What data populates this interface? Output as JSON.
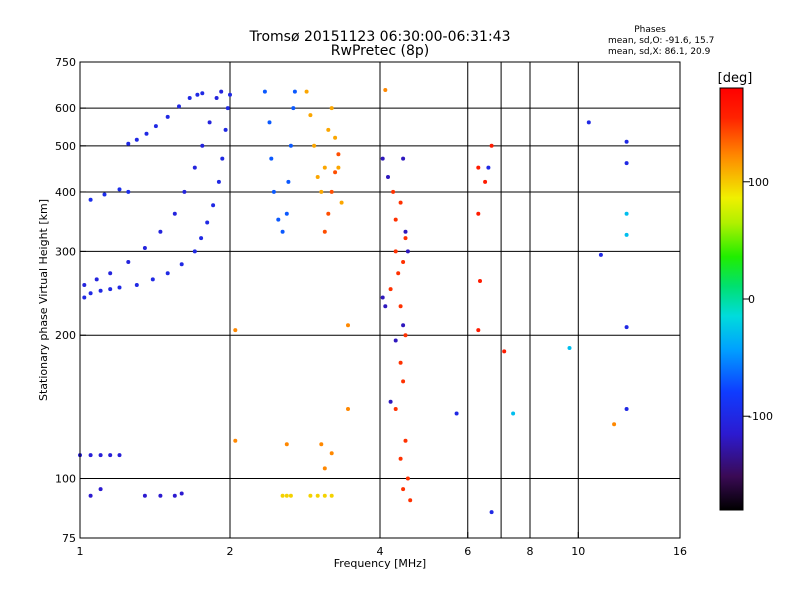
{
  "chart_data": {
    "type": "scatter",
    "title": "Tromsø 20151123 06:30:00-06:31:43",
    "subtitle": "RwPretec (8p)",
    "xlabel": "Frequency [MHz]",
    "ylabel": "Stationary phase Virtual Height [km]",
    "x_scale": "log",
    "y_scale": "log",
    "xlim": [
      1,
      16
    ],
    "ylim": [
      75,
      750
    ],
    "x_ticks": [
      1,
      2,
      4,
      6,
      8,
      10,
      16
    ],
    "x_tick_labels": [
      "1",
      "2",
      "4",
      "6",
      "8",
      "10",
      "16"
    ],
    "y_ticks": [
      75,
      100,
      200,
      300,
      400,
      500,
      600,
      750
    ],
    "y_tick_labels": [
      "75",
      "100",
      "200",
      "300",
      "400",
      "500",
      "600",
      "750"
    ],
    "x_gridlines": [
      2,
      4,
      6,
      7,
      8,
      10
    ],
    "y_gridlines": [
      100,
      200,
      300,
      400,
      500,
      600
    ],
    "stats": {
      "heading": "Phases",
      "line_o": "mean, sd,O: -91.6, 15.7",
      "line_x": "mean, sd,X:  86.1, 20.9"
    },
    "colorbar": {
      "label": "[deg]",
      "min": -180,
      "max": 180,
      "ticks": [
        100,
        0,
        -100
      ],
      "tick_labels": [
        "100",
        "0",
        "-100"
      ]
    },
    "traces": [
      {
        "name": "",
        "phase": -100,
        "points": [
          [
            1.02,
            240
          ],
          [
            1.05,
            245
          ],
          [
            1.1,
            248
          ],
          [
            1.15,
            250
          ],
          [
            1.2,
            252
          ],
          [
            1.3,
            255
          ],
          [
            1.4,
            262
          ],
          [
            1.5,
            270
          ],
          [
            1.6,
            282
          ],
          [
            1.7,
            300
          ],
          [
            1.75,
            320
          ],
          [
            1.8,
            345
          ],
          [
            1.85,
            375
          ],
          [
            1.9,
            420
          ],
          [
            1.93,
            470
          ],
          [
            1.96,
            540
          ],
          [
            1.98,
            600
          ],
          [
            2.0,
            640
          ]
        ]
      },
      {
        "name": "",
        "phase": -105,
        "points": [
          [
            1.02,
            255
          ],
          [
            1.08,
            262
          ],
          [
            1.15,
            270
          ],
          [
            1.25,
            285
          ],
          [
            1.35,
            305
          ],
          [
            1.45,
            330
          ],
          [
            1.55,
            360
          ],
          [
            1.62,
            400
          ],
          [
            1.7,
            450
          ],
          [
            1.76,
            500
          ],
          [
            1.82,
            560
          ],
          [
            1.88,
            630
          ],
          [
            1.92,
            650
          ]
        ]
      },
      {
        "name": "",
        "phase": -100,
        "points": [
          [
            1.25,
            505
          ],
          [
            1.3,
            515
          ],
          [
            1.36,
            530
          ],
          [
            1.42,
            550
          ],
          [
            1.5,
            575
          ],
          [
            1.58,
            605
          ],
          [
            1.66,
            630
          ],
          [
            1.72,
            640
          ],
          [
            1.76,
            645
          ]
        ]
      },
      {
        "name": "",
        "phase": -95,
        "points": [
          [
            1.05,
            385
          ],
          [
            1.12,
            395
          ],
          [
            1.2,
            405
          ],
          [
            1.25,
            400
          ]
        ]
      },
      {
        "name": "",
        "phase": -70,
        "points": [
          [
            2.35,
            650
          ],
          [
            2.4,
            560
          ],
          [
            2.42,
            470
          ],
          [
            2.45,
            400
          ],
          [
            2.5,
            350
          ],
          [
            2.55,
            330
          ],
          [
            2.6,
            360
          ],
          [
            2.62,
            420
          ],
          [
            2.65,
            500
          ],
          [
            2.68,
            600
          ],
          [
            2.7,
            650
          ]
        ]
      },
      {
        "name": "",
        "phase": 110,
        "points": [
          [
            2.85,
            650
          ],
          [
            2.9,
            580
          ],
          [
            2.95,
            500
          ],
          [
            3.0,
            430
          ],
          [
            3.05,
            400
          ],
          [
            3.1,
            450
          ],
          [
            3.15,
            540
          ],
          [
            3.2,
            600
          ],
          [
            3.25,
            520
          ],
          [
            3.3,
            450
          ],
          [
            3.35,
            380
          ]
        ]
      },
      {
        "name": "",
        "phase": 140,
        "points": [
          [
            3.1,
            330
          ],
          [
            3.15,
            360
          ],
          [
            3.2,
            400
          ],
          [
            3.25,
            440
          ],
          [
            3.3,
            480
          ]
        ]
      },
      {
        "name": "",
        "phase": -110,
        "points": [
          [
            1.0,
            112
          ],
          [
            1.05,
            112
          ],
          [
            1.1,
            112
          ],
          [
            1.15,
            112
          ],
          [
            1.2,
            112
          ]
        ]
      },
      {
        "name": "",
        "phase": -115,
        "points": [
          [
            1.05,
            92
          ],
          [
            1.1,
            95
          ],
          [
            1.35,
            92
          ],
          [
            1.45,
            92
          ],
          [
            1.55,
            92
          ],
          [
            1.6,
            93
          ]
        ]
      },
      {
        "name": "",
        "phase": 95,
        "points": [
          [
            2.55,
            92
          ],
          [
            2.6,
            92
          ],
          [
            2.65,
            92
          ],
          [
            2.9,
            92
          ],
          [
            3.0,
            92
          ],
          [
            3.1,
            92
          ],
          [
            3.2,
            92
          ]
        ]
      },
      {
        "name": "",
        "phase": 150,
        "points": [
          [
            4.25,
            400
          ],
          [
            4.4,
            380
          ],
          [
            4.3,
            350
          ],
          [
            4.5,
            320
          ],
          [
            4.3,
            300
          ],
          [
            4.45,
            285
          ],
          [
            4.35,
            270
          ],
          [
            4.2,
            250
          ],
          [
            4.4,
            230
          ],
          [
            4.5,
            200
          ],
          [
            4.4,
            175
          ],
          [
            4.45,
            160
          ],
          [
            4.3,
            140
          ],
          [
            4.5,
            120
          ],
          [
            4.4,
            110
          ],
          [
            4.55,
            100
          ],
          [
            4.45,
            95
          ],
          [
            4.6,
            90
          ]
        ]
      },
      {
        "name": "",
        "phase": -120,
        "points": [
          [
            4.05,
            470
          ],
          [
            4.15,
            430
          ],
          [
            4.45,
            470
          ],
          [
            4.5,
            330
          ],
          [
            4.55,
            300
          ],
          [
            4.05,
            240
          ],
          [
            4.1,
            230
          ],
          [
            4.45,
            210
          ],
          [
            4.3,
            195
          ],
          [
            4.2,
            145
          ]
        ]
      },
      {
        "name": "",
        "phase": 160,
        "points": [
          [
            6.3,
            450
          ],
          [
            6.5,
            420
          ],
          [
            6.3,
            360
          ],
          [
            6.35,
            260
          ],
          [
            6.3,
            205
          ],
          [
            6.7,
            500
          ],
          [
            7.1,
            185
          ]
        ]
      },
      {
        "name": "",
        "phase": -100,
        "points": [
          [
            6.6,
            450
          ],
          [
            6.7,
            85
          ],
          [
            10.5,
            560
          ],
          [
            12.5,
            510
          ],
          [
            12.5,
            460
          ],
          [
            12.5,
            208
          ],
          [
            11.1,
            295
          ],
          [
            12.5,
            140
          ],
          [
            5.7,
            137
          ]
        ]
      },
      {
        "name": "",
        "phase": -30,
        "points": [
          [
            12.5,
            360
          ],
          [
            12.5,
            325
          ],
          [
            7.4,
            137
          ],
          [
            9.6,
            188
          ]
        ]
      },
      {
        "name": "",
        "phase": 120,
        "points": [
          [
            2.05,
            205
          ],
          [
            2.05,
            120
          ],
          [
            2.6,
            118
          ],
          [
            3.05,
            118
          ],
          [
            3.2,
            113
          ],
          [
            3.45,
            210
          ],
          [
            3.45,
            140
          ],
          [
            4.1,
            655
          ],
          [
            11.8,
            130
          ],
          [
            3.1,
            105
          ]
        ]
      }
    ]
  }
}
